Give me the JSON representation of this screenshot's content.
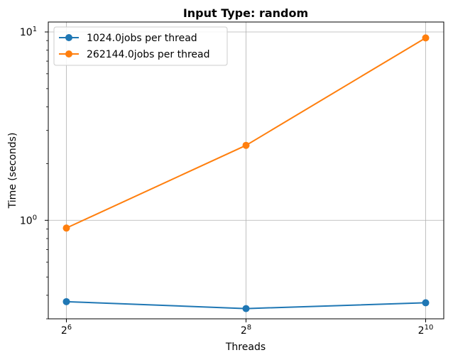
{
  "chart_data": {
    "type": "line",
    "title": "Input Type: random",
    "xlabel": "Threads",
    "ylabel": "Time (seconds)",
    "x_scale": "log2",
    "y_scale": "log10",
    "x": [
      64,
      1024
    ],
    "xlim": [
      64,
      1024
    ],
    "ylim": [
      0.3,
      10
    ],
    "grid": true,
    "legend_position": "top-left",
    "x_ticks": [
      {
        "value": 64,
        "base": "2",
        "exp": "6"
      },
      {
        "value": 256,
        "base": "2",
        "exp": "8"
      },
      {
        "value": 1024,
        "base": "2",
        "exp": "10"
      }
    ],
    "y_ticks": [
      {
        "value": 1,
        "base": "10",
        "exp": "0"
      },
      {
        "value": 10,
        "base": "10",
        "exp": "1"
      }
    ],
    "series": [
      {
        "name": "1024.0jobs per thread",
        "color": "#1f77b4",
        "x": [
          64,
          256,
          1024
        ],
        "values": [
          0.37,
          0.34,
          0.365
        ]
      },
      {
        "name": "262144.0jobs per thread",
        "color": "#ff7f0e",
        "x": [
          64,
          256,
          1024
        ],
        "values": [
          0.91,
          2.5,
          9.3
        ]
      }
    ]
  }
}
